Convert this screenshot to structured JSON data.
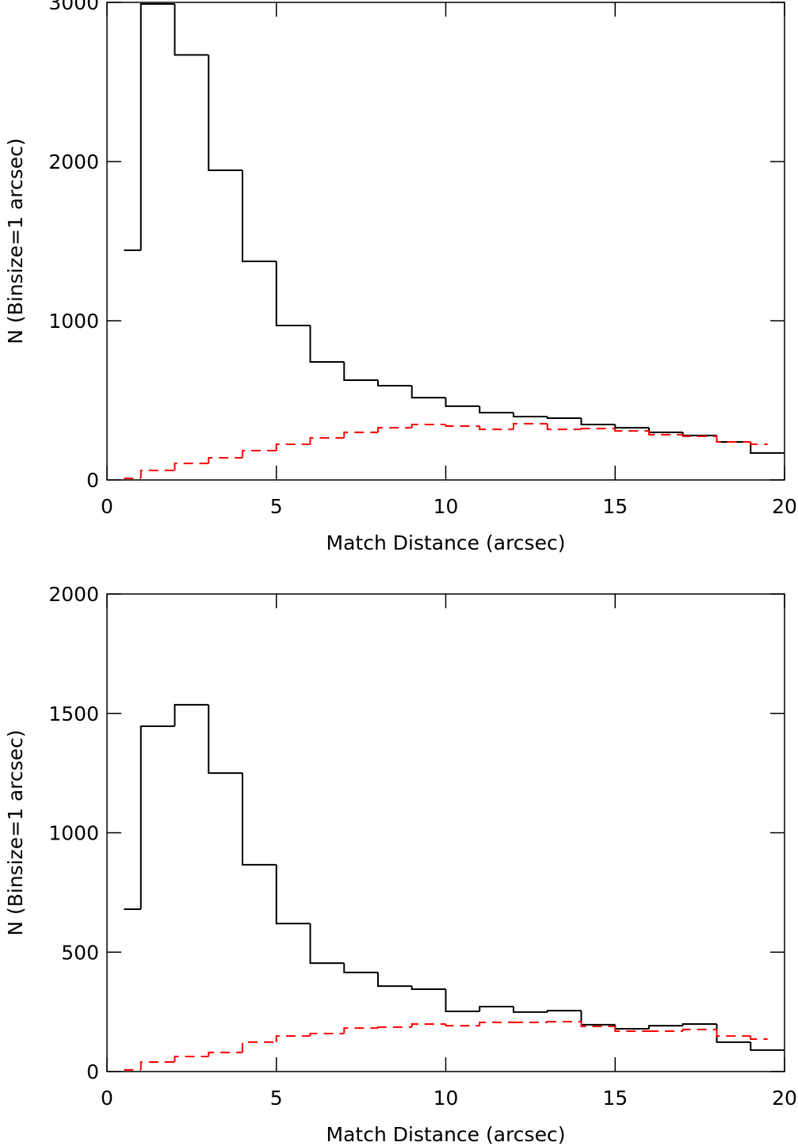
{
  "chart_data": [
    {
      "type": "histogram",
      "xlabel": "Match Distance (arcsec)",
      "ylabel": "N (Binsize=1 arcsec)",
      "xlim": [
        0,
        20
      ],
      "ylim": [
        0,
        3000
      ],
      "xticks": [
        0,
        5,
        10,
        15,
        20
      ],
      "yticks": [
        0,
        1000,
        2000,
        3000
      ],
      "series": [
        {
          "color": "#000000",
          "linestyle": "solid",
          "bins": [
            0.5,
            1,
            2,
            3,
            4,
            5,
            6,
            7,
            8,
            9,
            10,
            11,
            12,
            13,
            14,
            15,
            16,
            17,
            18,
            19,
            20
          ],
          "values": [
            1443,
            2990,
            2670,
            1945,
            1373,
            970,
            741,
            627,
            592,
            517,
            463,
            423,
            398,
            388,
            348,
            328,
            299,
            279,
            239,
            169
          ]
        },
        {
          "color": "#ff0000",
          "linestyle": "dashed",
          "bins": [
            0.5,
            1,
            2,
            3,
            4,
            5,
            6,
            7,
            8,
            9,
            10,
            11,
            12,
            13,
            14,
            15,
            16,
            17,
            18,
            19,
            19.5
          ],
          "values": [
            10,
            60,
            104,
            139,
            184,
            224,
            264,
            299,
            328,
            348,
            338,
            318,
            353,
            318,
            323,
            308,
            284,
            274,
            239,
            224
          ]
        }
      ]
    },
    {
      "type": "histogram",
      "xlabel": "Match Distance (arcsec)",
      "ylabel": "N (Binsize=1 arcsec)",
      "xlim": [
        0,
        20
      ],
      "ylim": [
        0,
        2000
      ],
      "xticks": [
        0,
        5,
        10,
        15,
        20
      ],
      "yticks": [
        0,
        500,
        1000,
        1500,
        2000
      ],
      "series": [
        {
          "color": "#000000",
          "linestyle": "solid",
          "bins": [
            0.5,
            1,
            2,
            3,
            4,
            5,
            6,
            7,
            8,
            9,
            10,
            11,
            12,
            13,
            14,
            15,
            16,
            17,
            18,
            19,
            20
          ],
          "values": [
            680,
            1446,
            1536,
            1250,
            866,
            620,
            454,
            415,
            358,
            345,
            252,
            272,
            249,
            255,
            196,
            179,
            192,
            199,
            123,
            90
          ]
        },
        {
          "color": "#ff0000",
          "linestyle": "dashed",
          "bins": [
            0.5,
            1,
            2,
            3,
            4,
            5,
            6,
            7,
            8,
            9,
            10,
            11,
            12,
            13,
            14,
            15,
            16,
            17,
            18,
            19,
            19.5
          ],
          "values": [
            7,
            40,
            63,
            80,
            123,
            149,
            159,
            182,
            186,
            199,
            192,
            206,
            206,
            209,
            189,
            169,
            169,
            176,
            149,
            136
          ]
        }
      ]
    }
  ]
}
